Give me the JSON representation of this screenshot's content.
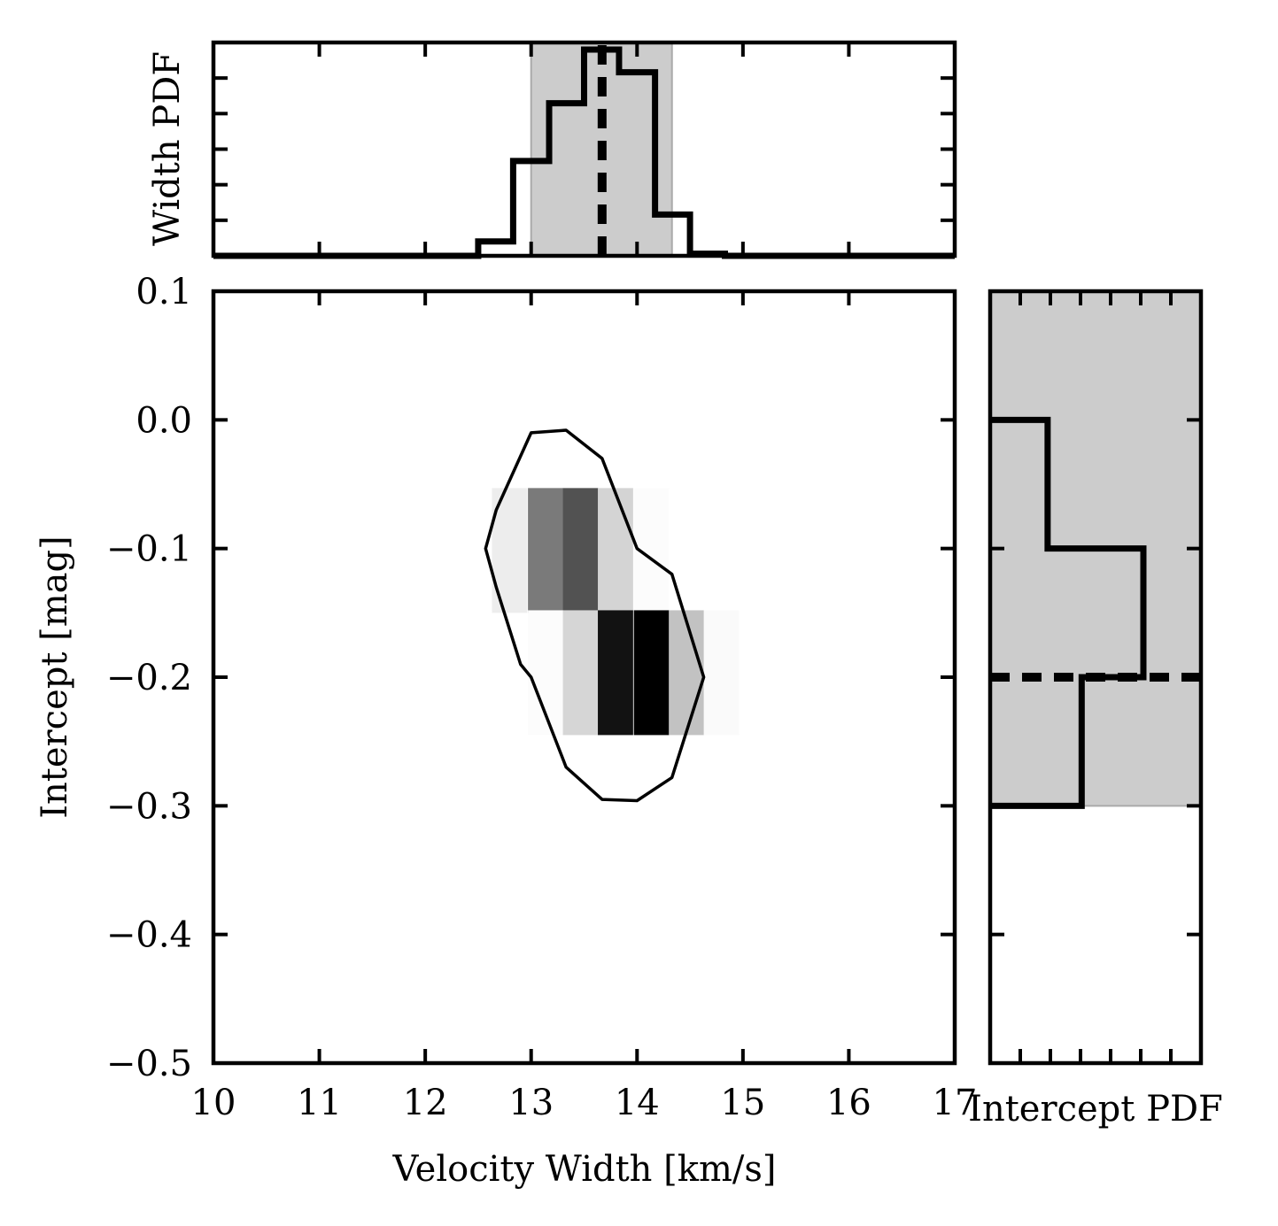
{
  "chart_data": [
    {
      "panel": "main",
      "type": "heatmap",
      "xlabel": "Velocity Width [km/s]",
      "ylabel": "Intercept [mag]",
      "xlim": [
        10,
        17
      ],
      "ylim": [
        -0.5,
        0.1
      ],
      "x_ticks": [
        10,
        11,
        12,
        13,
        14,
        15,
        16,
        17
      ],
      "x_tick_labels": [
        "10",
        "11",
        "12",
        "13",
        "14",
        "15",
        "16",
        "17"
      ],
      "y_ticks": [
        0.1,
        0.0,
        -0.1,
        -0.2,
        -0.3,
        -0.4,
        -0.5
      ],
      "y_tick_labels": [
        "0.1",
        "0.0",
        "−0.1",
        "−0.2",
        "−0.3",
        "−0.4",
        "−0.5"
      ],
      "grid": false,
      "bin_width_x": 0.333,
      "bin_height_y": 0.097,
      "cells": [
        {
          "x0": 12.63,
          "y0": -0.15,
          "density": 0.07
        },
        {
          "x0": 12.97,
          "y0": -0.15,
          "density": 0.52
        },
        {
          "x0": 13.3,
          "y0": -0.15,
          "density": 0.68
        },
        {
          "x0": 13.63,
          "y0": -0.15,
          "density": 0.17
        },
        {
          "x0": 13.97,
          "y0": -0.15,
          "density": 0.01
        },
        {
          "x0": 12.97,
          "y0": -0.245,
          "density": 0.01
        },
        {
          "x0": 13.3,
          "y0": -0.245,
          "density": 0.16
        },
        {
          "x0": 13.63,
          "y0": -0.245,
          "density": 0.93
        },
        {
          "x0": 13.97,
          "y0": -0.245,
          "density": 1.0
        },
        {
          "x0": 14.3,
          "y0": -0.245,
          "density": 0.24
        },
        {
          "x0": 14.63,
          "y0": -0.245,
          "density": 0.02
        }
      ],
      "contour": [
        [
          13.0,
          -0.01
        ],
        [
          13.33,
          -0.008
        ],
        [
          13.67,
          -0.03
        ],
        [
          14.0,
          -0.1
        ],
        [
          14.33,
          -0.12
        ],
        [
          14.63,
          -0.2
        ],
        [
          14.33,
          -0.278
        ],
        [
          14.0,
          -0.296
        ],
        [
          13.67,
          -0.295
        ],
        [
          13.33,
          -0.27
        ],
        [
          13.0,
          -0.2
        ],
        [
          12.9,
          -0.19
        ],
        [
          12.67,
          -0.13
        ],
        [
          12.57,
          -0.1
        ],
        [
          12.67,
          -0.07
        ],
        [
          13.0,
          -0.01
        ]
      ]
    },
    {
      "panel": "top",
      "type": "line",
      "ylabel": "Width PDF",
      "xlim": [
        10,
        17
      ],
      "x_ticks": [
        10,
        11,
        12,
        13,
        14,
        15,
        16,
        17
      ],
      "y_minor_ticks": 5,
      "step_edges": [
        12.5,
        12.83,
        13.17,
        13.5,
        13.83,
        14.17,
        14.5,
        14.83
      ],
      "step_heights": [
        0.07,
        0.46,
        0.74,
        1.0,
        0.89,
        0.2,
        0.01
      ],
      "ymax": 1.0,
      "median": 13.67,
      "ci": [
        13.0,
        14.33
      ]
    },
    {
      "panel": "right",
      "type": "line",
      "xlabel": "Intercept PDF",
      "ylim": [
        -0.5,
        0.1
      ],
      "y_ticks": [
        0.1,
        0.0,
        -0.1,
        -0.2,
        -0.3,
        -0.4,
        -0.5
      ],
      "x_minor_ticks": 6,
      "step_edges": [
        0.0,
        -0.1,
        -0.2,
        -0.3
      ],
      "step_widths": [
        0.27,
        0.72,
        0.43
      ],
      "median": -0.2,
      "ci": [
        -0.3,
        0.1
      ]
    }
  ]
}
